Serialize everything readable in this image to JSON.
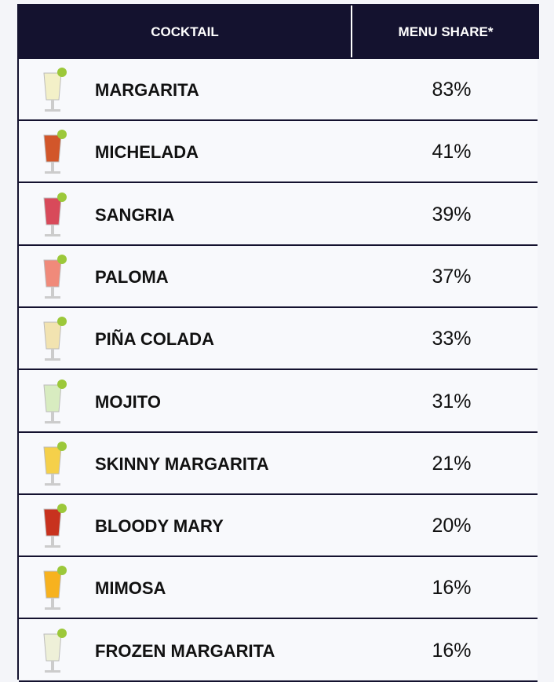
{
  "table": {
    "header": [
      "COCKTAIL",
      "MENU SHARE*"
    ],
    "rows": [
      [
        "MARGARITA",
        "83%"
      ],
      [
        "MICHELADA",
        "41%"
      ],
      [
        "SANGRIA",
        "39%"
      ],
      [
        "PALOMA",
        "37%"
      ],
      [
        "PIÑA COLADA",
        "33%"
      ],
      [
        "MOJITO",
        "31%"
      ],
      [
        "SKINNY MARGARITA",
        "21%"
      ],
      [
        "BLOODY MARY",
        "20%"
      ],
      [
        "MIMOSA",
        "16%"
      ],
      [
        "FROZEN MARGARITA",
        "16%"
      ]
    ]
  }
}
